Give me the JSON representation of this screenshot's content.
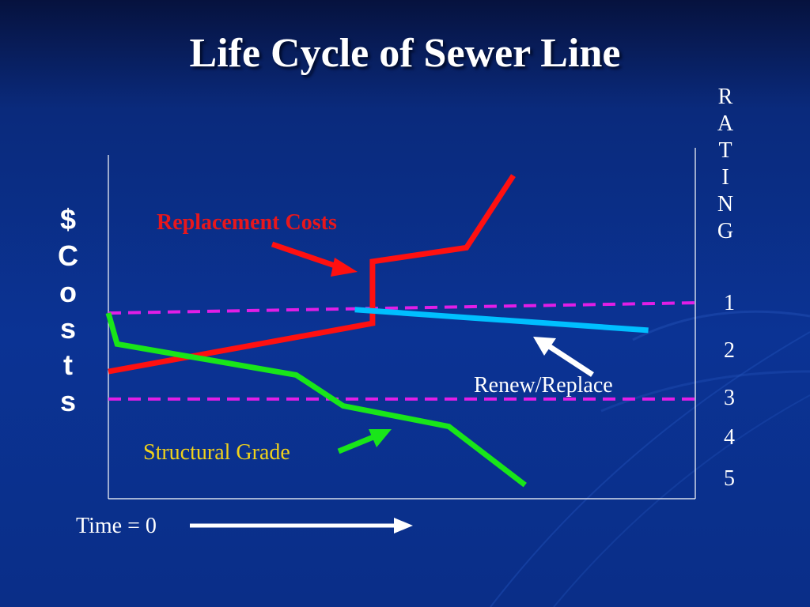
{
  "title": "Life Cycle of Sewer Line",
  "y_axis_left_label": [
    "$",
    "C",
    "o",
    "s",
    "t",
    "s"
  ],
  "y_axis_right_label": [
    "R",
    "A",
    "T",
    "I",
    "N",
    "G"
  ],
  "rating_levels": [
    "1",
    "2",
    "3",
    "4",
    "5"
  ],
  "annotations": {
    "replacement_costs": "Replacement Costs",
    "structural_grade": "Structural Grade",
    "renew_replace": "Renew/Replace",
    "time_zero": "Time = 0"
  },
  "colors": {
    "background": "#0b3394",
    "replacement_costs": "#ff1010",
    "structural_grade": "#19e619",
    "renewed_rating": "#00bfff",
    "threshold_lines": "#e11ee6",
    "axes": "#ffffff",
    "structural_label": "#f0d21a"
  },
  "chart_data": {
    "type": "line",
    "title": "Life Cycle of Sewer Line",
    "xlabel": "Time = 0",
    "ylabel_left": "$ Costs",
    "ylabel_right": "RATING",
    "y_right_ticks": [
      "1",
      "2",
      "3",
      "4",
      "5"
    ],
    "x_range": [
      0,
      100
    ],
    "y_range": [
      0,
      100
    ],
    "series": [
      {
        "name": "Replacement Costs",
        "points": [
          [
            0,
            37
          ],
          [
            45,
            51
          ],
          [
            45,
            69
          ],
          [
            61,
            73
          ],
          [
            69,
            94
          ]
        ]
      },
      {
        "name": "Structural Grade",
        "points": [
          [
            0,
            54
          ],
          [
            1.5,
            45
          ],
          [
            32,
            36
          ],
          [
            40,
            27
          ],
          [
            58,
            21
          ],
          [
            71,
            4
          ]
        ]
      },
      {
        "name": "Renew/Replace",
        "points": [
          [
            42,
            55
          ],
          [
            92,
            49
          ]
        ]
      }
    ],
    "threshold_lines": [
      {
        "points": [
          [
            0,
            54
          ],
          [
            100,
            57
          ]
        ]
      },
      {
        "points": [
          [
            0,
            29
          ],
          [
            100,
            29
          ]
        ]
      }
    ]
  }
}
